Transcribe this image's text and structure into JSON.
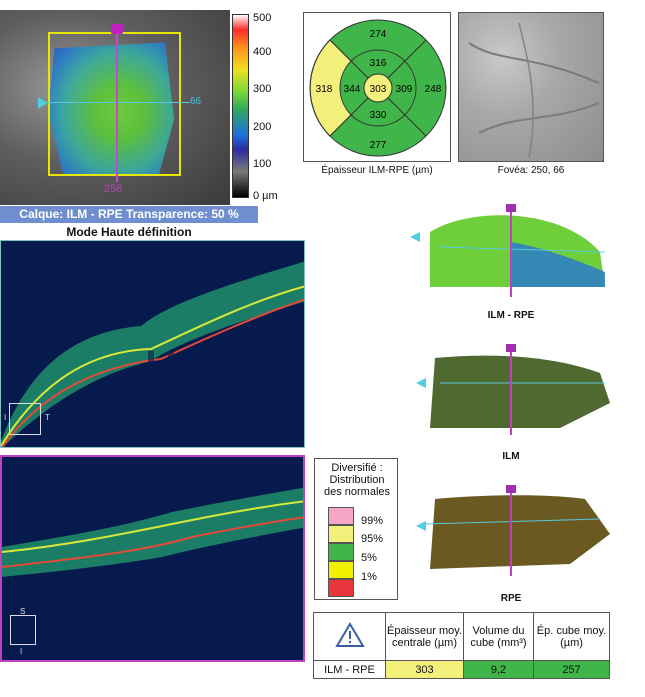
{
  "thickness_map": {
    "x_coord": "256",
    "y_coord": "66",
    "colorbar_labels": [
      "500",
      "400",
      "300",
      "200",
      "100",
      "0 µm"
    ],
    "layer_banner": "Calque: ILM - RPE  Transparence: 50 %",
    "mode_label": "Mode Haute définition"
  },
  "sector_grid": {
    "center": "303",
    "inner_top": "316",
    "inner_left": "344",
    "inner_right": "309",
    "inner_bottom": "330",
    "outer_top": "274",
    "outer_left": "318",
    "outer_right": "248",
    "outer_bottom": "277",
    "caption": "Épaisseur ILM-RPE (µm)",
    "colors": {
      "normal": "#3fb54a",
      "borderline": "#f2ef7a"
    }
  },
  "fovea": {
    "caption": "Fovéa: 250, 66"
  },
  "bscan1": {
    "orient_left": "I",
    "orient_right": "T"
  },
  "bscan2": {
    "orient_top": "S",
    "orient_bottom": "I"
  },
  "legend": {
    "title": [
      "Diversifié :",
      "Distribution",
      "des normales"
    ],
    "items": [
      {
        "pct": "99%",
        "color": "#f7a6c8"
      },
      {
        "pct": "95%",
        "color": "#f2ef7a"
      },
      {
        "pct": "5%",
        "color": "#3fb54a"
      },
      {
        "pct": "1%",
        "color": "#f2ef00"
      },
      {
        "pct": "",
        "color": "#e8363c"
      }
    ]
  },
  "surfaces": {
    "ilm_rpe_label": "ILM - RPE",
    "ilm_label": "ILM",
    "rpe_label": "RPE"
  },
  "results_table": {
    "headers": [
      "Épaisseur moy. centrale (µm)",
      "Volume du cube (mm³)",
      "Ép. cube moy. (µm)"
    ],
    "row_label": "ILM - RPE",
    "values": [
      "303",
      "9,2",
      "257"
    ],
    "value_colors": [
      "#f2ef7a",
      "#3fb54a",
      "#3fb54a"
    ]
  }
}
